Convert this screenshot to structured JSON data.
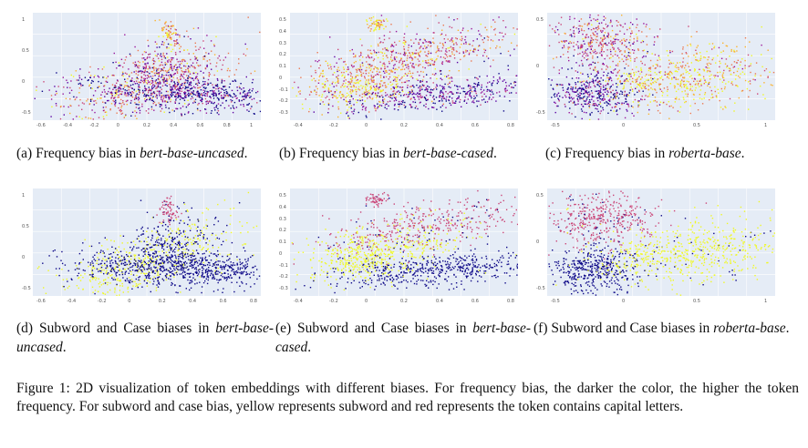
{
  "panels": [
    {
      "id": "a",
      "cap_prefix": "(a) Frequency bias in ",
      "cap_model": "bert-base-uncased",
      "cap_suffix": ".",
      "xticks": [
        "-0.6",
        "-0.4",
        "-0.2",
        "0",
        "0.2",
        "0.4",
        "0.6",
        "0.8",
        "1"
      ],
      "yticks": [
        "1",
        "0.5",
        "0",
        "-0.5"
      ],
      "kind": "freq",
      "layout": "bert"
    },
    {
      "id": "b",
      "cap_prefix": "(b) Frequency bias in ",
      "cap_model": "bert-base-cased",
      "cap_suffix": ".",
      "xticks": [
        "-0.4",
        "-0.2",
        "0",
        "0.2",
        "0.4",
        "0.6",
        "0.8"
      ],
      "yticks": [
        "0.5",
        "0.4",
        "0.3",
        "0.2",
        "0.1",
        "0",
        "-0.1",
        "-0.2",
        "-0.3"
      ],
      "kind": "freq",
      "layout": "cased"
    },
    {
      "id": "c",
      "cap_prefix": "(c) Frequency bias in ",
      "cap_model": "roberta-base",
      "cap_suffix": ".",
      "xticks": [
        "-0.5",
        "0",
        "0.5",
        "1"
      ],
      "yticks": [
        "0.5",
        "0",
        "-0.5"
      ],
      "kind": "freq",
      "layout": "roberta"
    },
    {
      "id": "d",
      "cap_prefix": "(d) Subword and Case biases in ",
      "cap_model": "bert-base-uncased",
      "cap_suffix": ".",
      "xticks": [
        "-0.6",
        "-0.4",
        "-0.2",
        "0",
        "0.2",
        "0.4",
        "0.6",
        "0.8"
      ],
      "yticks": [
        "1",
        "0.5",
        "0",
        "-0.5"
      ],
      "kind": "sub",
      "layout": "bert"
    },
    {
      "id": "e",
      "cap_prefix": "(e) Subword and Case biases in ",
      "cap_model": "bert-base-cased",
      "cap_suffix": ".",
      "xticks": [
        "-0.4",
        "-0.2",
        "0",
        "0.2",
        "0.4",
        "0.6",
        "0.8"
      ],
      "yticks": [
        "0.5",
        "0.4",
        "0.3",
        "0.2",
        "0.1",
        "0",
        "-0.1",
        "-0.2",
        "-0.3"
      ],
      "kind": "sub",
      "layout": "cased"
    },
    {
      "id": "f",
      "cap_prefix": "(f) Subword and Case biases in ",
      "cap_model": "roberta-base",
      "cap_suffix": ".",
      "xticks": [
        "-0.5",
        "0",
        "0.5",
        "1"
      ],
      "yticks": [
        "0.5",
        "0",
        "-0.5"
      ],
      "kind": "sub",
      "layout": "roberta"
    }
  ],
  "caption": "Figure 1: 2D visualization of token embeddings with different biases. For frequency bias, the darker the color, the higher the token frequency. For subword and case bias, yellow represents subword and red represents the token contains capital letters.",
  "colors": {
    "plot_bg": "#e5ecf6",
    "plasma": [
      "#0d0887",
      "#5b02a3",
      "#9a179b",
      "#cb4678",
      "#eb7852",
      "#fbb32f",
      "#f0f921"
    ],
    "subword": "#f0f921",
    "capital": "#cb4678",
    "other": "#0d0887"
  }
}
